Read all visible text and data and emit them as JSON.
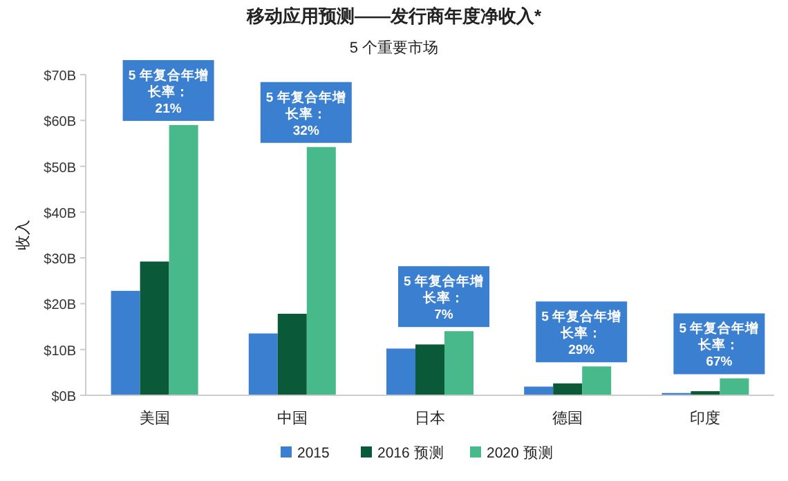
{
  "chart_data": {
    "type": "bar",
    "title": "移动应用预测——发行商年度净收入*",
    "subtitle": "5 个重要市场",
    "ylabel": "收入",
    "categories": [
      "美国",
      "中国",
      "日本",
      "德国",
      "印度"
    ],
    "series": [
      {
        "name": "2015",
        "color": "#3b7fd0",
        "values": [
          22.8,
          13.5,
          10.2,
          1.9,
          0.5
        ]
      },
      {
        "name": "2016 预测",
        "color": "#0a5a3a",
        "values": [
          29.2,
          17.8,
          11.1,
          2.6,
          0.9
        ]
      },
      {
        "name": "2020 预测",
        "color": "#47b98a",
        "values": [
          59,
          54.2,
          14,
          6.3,
          3.7
        ]
      }
    ],
    "ylim": [
      0,
      70
    ],
    "yticks": [
      {
        "value": 0,
        "label": "$0B"
      },
      {
        "value": 10,
        "label": "$10B"
      },
      {
        "value": 20,
        "label": "$20B"
      },
      {
        "value": 30,
        "label": "$30B"
      },
      {
        "value": 40,
        "label": "$40B"
      },
      {
        "value": 50,
        "label": "$50B"
      },
      {
        "value": 60,
        "label": "$60B"
      },
      {
        "value": 70,
        "label": "$70B"
      }
    ],
    "legend": "bottom",
    "annotations": [
      "5 年复合年增长率：21%",
      "5 年复合年增长率：32%",
      "5 年复合年增长率：7%",
      "5 年复合年增长率：29%",
      "5 年复合年增长率：67%"
    ]
  }
}
